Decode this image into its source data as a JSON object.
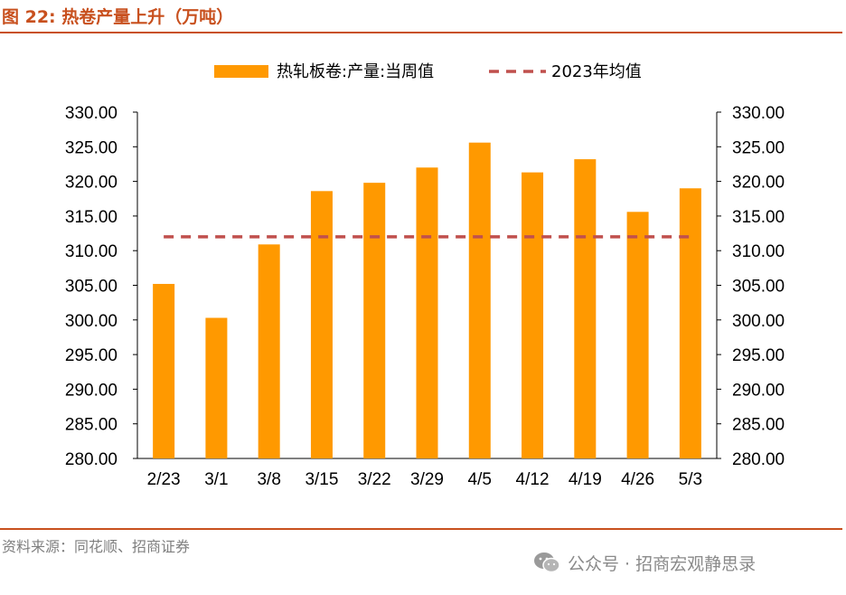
{
  "header": {
    "title": "图 22:  热卷产量上升（万吨）"
  },
  "footer": {
    "source": "资料来源：同花顺、招商证券",
    "watermark": "公众号 · 招商宏观静思录",
    "watermark_icon": "wechat-icon"
  },
  "colors": {
    "bar": "#ff9900",
    "avg_line": "#c0504d",
    "accent": "#c8501e"
  },
  "chart_data": {
    "type": "bar",
    "title": "",
    "xlabel": "",
    "ylabel": "",
    "categories": [
      "2/23",
      "3/1",
      "3/8",
      "3/15",
      "3/22",
      "3/29",
      "4/5",
      "4/12",
      "4/19",
      "4/26",
      "5/3"
    ],
    "series": [
      {
        "name": "热轧板卷:产量:当周值",
        "type": "bar",
        "values": [
          305.2,
          300.3,
          310.9,
          318.6,
          319.8,
          322.0,
          325.6,
          321.3,
          323.2,
          315.6,
          319.0
        ]
      },
      {
        "name": "2023年均值",
        "type": "line",
        "style": "dashed",
        "values": [
          312.0,
          312.0,
          312.0,
          312.0,
          312.0,
          312.0,
          312.0,
          312.0,
          312.0,
          312.0,
          312.0
        ]
      }
    ],
    "ylim": [
      280,
      330
    ],
    "yticks": [
      "280.00",
      "285.00",
      "290.00",
      "295.00",
      "300.00",
      "305.00",
      "310.00",
      "315.00",
      "320.00",
      "325.00",
      "330.00"
    ],
    "secondary_yticks": [
      "280.00",
      "285.00",
      "290.00",
      "295.00",
      "300.00",
      "305.00",
      "310.00",
      "315.00",
      "320.00",
      "325.00",
      "330.00"
    ],
    "grid": false,
    "legend_position": "top"
  }
}
